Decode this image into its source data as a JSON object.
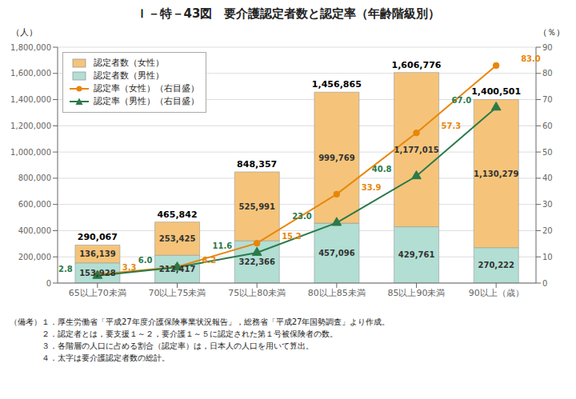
{
  "chart_data": {
    "type": "bar",
    "title": "Ｉ－特－43図　要介護認定者数と認定率（年齢階級別）",
    "categories": [
      "65以上70未満",
      "70以上75未満",
      "75以上80未満",
      "80以上85未満",
      "85以上90未満",
      "90以上（歳）"
    ],
    "stacked": true,
    "grid": true,
    "legend": "upper left",
    "data_labels": true,
    "ylabel": "（人）",
    "y2label": "（％）",
    "ylim": [
      0,
      1800000
    ],
    "yticks": [
      0,
      {
        "value": 200000,
        "label": "200,000"
      },
      {
        "value": 400000,
        "label": "400,000"
      },
      {
        "value": 600000,
        "label": "600,000"
      },
      {
        "value": 800000,
        "label": "800,000"
      },
      {
        "value": 1000000,
        "label": "1,000,000"
      },
      {
        "value": 1200000,
        "label": "1,200,000"
      },
      {
        "value": 1400000,
        "label": "1,400,000"
      },
      {
        "value": 1600000,
        "label": "1,600,000"
      },
      {
        "value": 1800000,
        "label": "1,800,000"
      }
    ],
    "y2lim": [
      0,
      90
    ],
    "y2ticks": [
      0,
      10,
      20,
      30,
      40,
      50,
      60,
      70,
      80,
      90
    ],
    "series": [
      {
        "name": "認定者数（女性）",
        "type": "bar",
        "color": "#F5C47A",
        "values": [
          136139,
          253425,
          525991,
          999769,
          1177015,
          1130279
        ],
        "value_labels": [
          "136,139",
          "253,425",
          "525,991",
          "999,769",
          "1,177,015",
          "1,130,279"
        ]
      },
      {
        "name": "認定者数（男性）",
        "type": "bar",
        "color": "#B2DED3",
        "values": [
          153928,
          212417,
          322366,
          457096,
          429761,
          270222
        ],
        "value_labels": [
          "153,928",
          "212,417",
          "322,366",
          "457,096",
          "429,761",
          "270,222"
        ]
      },
      {
        "name": "認定率（女性）（右目盛）",
        "type": "line",
        "axis": "y2",
        "color": "#E8860A",
        "marker": "circle",
        "values": [
          3.3,
          6.2,
          15.2,
          33.9,
          57.3,
          83.0
        ],
        "value_labels": [
          "3.3",
          "6.2",
          "15.2",
          "33.9",
          "57.3",
          "83.0"
        ]
      },
      {
        "name": "認定率（男性）（右目盛）",
        "type": "line",
        "axis": "y2",
        "color": "#2A7A4A",
        "marker": "triangle",
        "values": [
          2.8,
          6.0,
          11.6,
          23.0,
          40.8,
          67.0
        ],
        "value_labels": [
          "2.8",
          "6.0",
          "11.6",
          "23.0",
          "40.8",
          "67.0"
        ]
      }
    ],
    "totals": {
      "values": [
        290067,
        465842,
        848357,
        1456865,
        1606776,
        1400501
      ],
      "value_labels": [
        "290,067",
        "465,842",
        "848,357",
        "1,456,865",
        "1,606,776",
        "1,400,501"
      ]
    },
    "notes": [
      "（備考）１．厚生労働省「平成27年度介護保険事業状況報告」，総務省「平成27年国勢調査」より作成。",
      "　　　　２．認定者とは，要支援１～２，要介護１～５に認定された第１号被保険者の数。",
      "　　　　３．各階層の人口に占める割合（認定率）は，日本人の人口を用いて算出。",
      "　　　　４．太字は要介護認定者数の総計。"
    ]
  }
}
